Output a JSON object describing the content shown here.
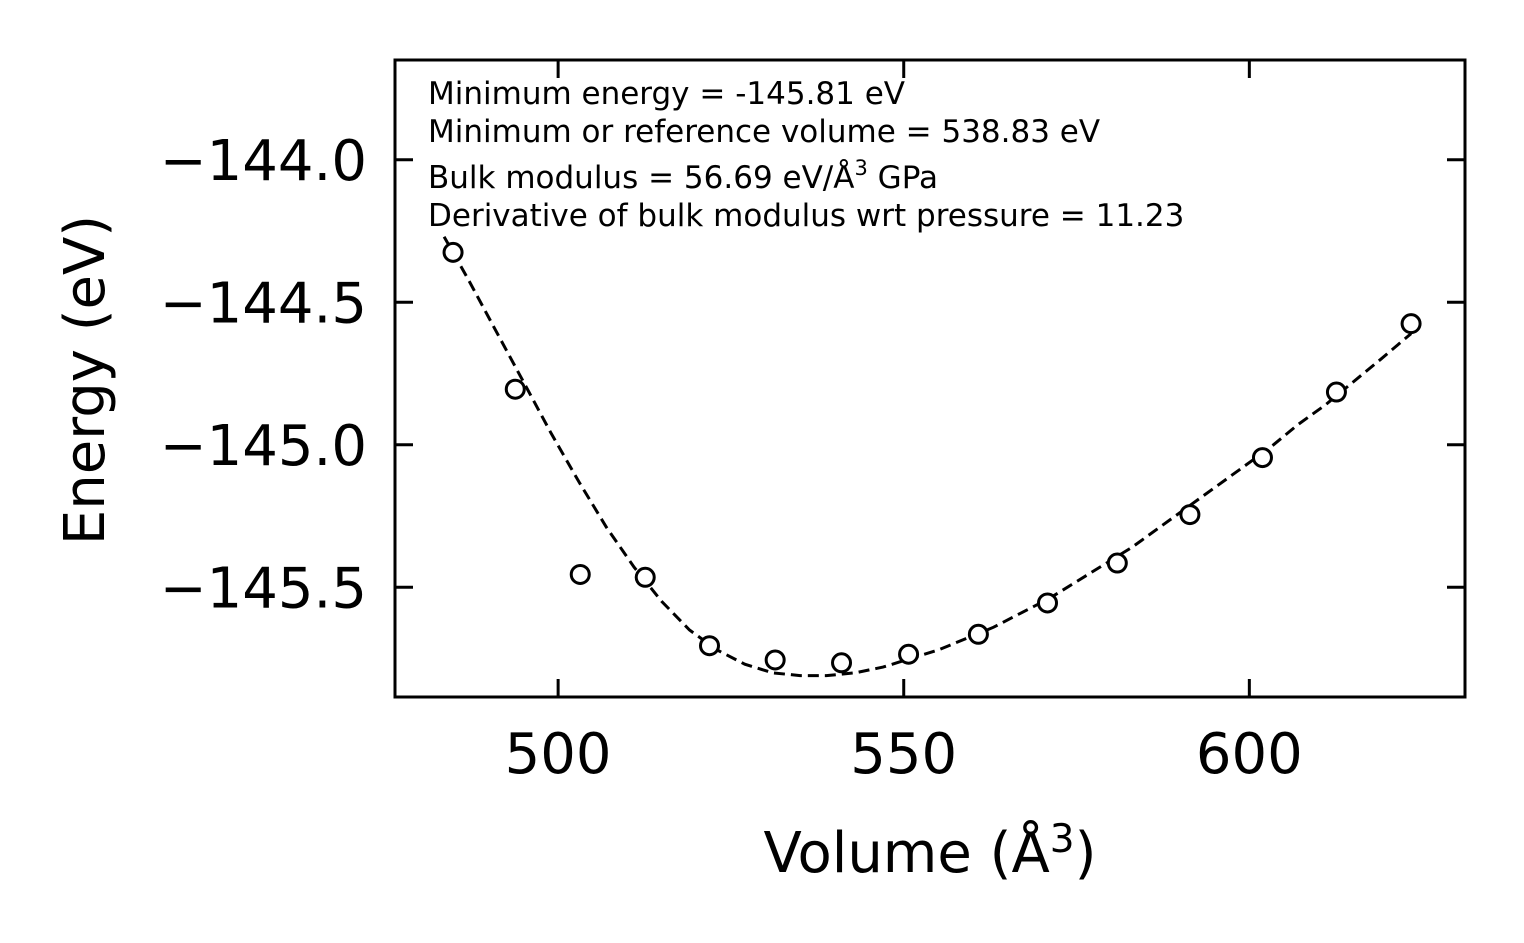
{
  "chart_data": {
    "type": "scatter",
    "xlabel": "Volume (Å",
    "xlabel_sup": "3",
    "xlabel_close": ")",
    "ylabel": "Energy (eV)",
    "xlim": [
      476.4,
      631.2
    ],
    "ylim": [
      -145.885,
      -143.65
    ],
    "xticks": [
      500,
      550,
      600
    ],
    "xtick_labels": [
      "500",
      "550",
      "600"
    ],
    "yticks": [
      -144.0,
      -144.5,
      -145.0,
      -145.5
    ],
    "ytick_labels": [
      "−144.0",
      "−144.5",
      "−145.0",
      "−145.5"
    ],
    "series": [
      {
        "name": "data",
        "style": "open-circle",
        "x": [
          484.8,
          493.8,
          503.2,
          512.6,
          521.9,
          531.4,
          541.0,
          550.7,
          560.8,
          570.8,
          580.9,
          591.4,
          601.9,
          612.6,
          623.4
        ],
        "y": [
          -144.325,
          -144.805,
          -145.455,
          -145.465,
          -145.705,
          -145.755,
          -145.765,
          -145.735,
          -145.665,
          -145.555,
          -145.415,
          -145.245,
          -145.045,
          -144.815,
          -144.575
        ]
      },
      {
        "name": "fit",
        "style": "dashed-line",
        "x": [
          483.5,
          487,
          491,
          495,
          499,
          503,
          507,
          511,
          515,
          519,
          523,
          527,
          531,
          535,
          538.83,
          543,
          547,
          551,
          555,
          559,
          563,
          567,
          571,
          575,
          579,
          583,
          587,
          591,
          595,
          599,
          603,
          607,
          611,
          615,
          619,
          623.4
        ],
        "y": [
          -144.27,
          -144.42,
          -144.6,
          -144.78,
          -144.96,
          -145.13,
          -145.29,
          -145.43,
          -145.55,
          -145.65,
          -145.72,
          -145.77,
          -145.8,
          -145.81,
          -145.81,
          -145.8,
          -145.78,
          -145.75,
          -145.72,
          -145.68,
          -145.64,
          -145.59,
          -145.54,
          -145.48,
          -145.42,
          -145.36,
          -145.29,
          -145.22,
          -145.15,
          -145.08,
          -145.01,
          -144.93,
          -144.86,
          -144.78,
          -144.7,
          -144.61
        ]
      }
    ],
    "annotations": [
      "Minimum energy = -145.81 eV",
      "Minimum or reference volume = 538.83 eV",
      "Bulk modulus = 56.69 eV/Å",
      "Derivative of bulk modulus wrt pressure = 11.23"
    ],
    "annotation_sup": "3",
    "annotation_tail": " GPa",
    "grid": false,
    "legend": "none"
  }
}
